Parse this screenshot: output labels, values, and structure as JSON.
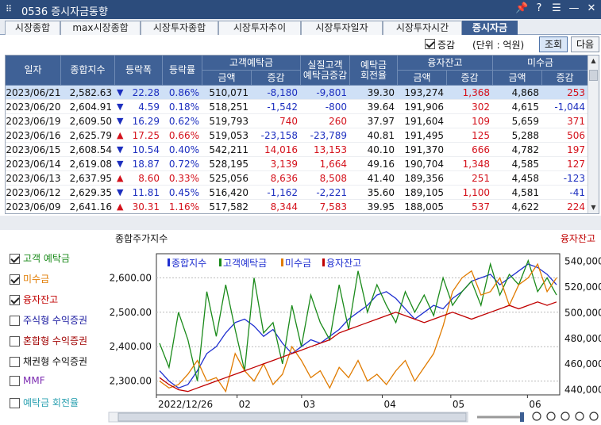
{
  "window": {
    "title": "0536 증시자금동향",
    "buttons": [
      "📌",
      "?",
      "☰",
      "—",
      "✕"
    ]
  },
  "tabs": [
    {
      "label": "시장종합",
      "active": false
    },
    {
      "label": "max시장종합",
      "active": false
    },
    {
      "label": "시장투자종합",
      "active": false
    },
    {
      "label": "시장투자추이",
      "active": false
    },
    {
      "label": "시장투자일자",
      "active": false
    },
    {
      "label": "시장투자시간",
      "active": false
    },
    {
      "label": "증시자금",
      "active": true
    }
  ],
  "controls": {
    "change_label": "증감",
    "change_checked": true,
    "unit_label": "(단위 : 억원)",
    "query_button": "조회",
    "next_button": "다음"
  },
  "grid": {
    "headers": {
      "date": "일자",
      "index": "종합지수",
      "change": "등락폭",
      "rate": "등락률",
      "deposit": "고객예탁금",
      "real_deposit": "실질고객\n예탁금증감",
      "turnover": "예탁금\n회전율",
      "credit": "융자잔고",
      "unpaid": "미수금",
      "amount": "금액",
      "delta": "증감"
    },
    "rows": [
      {
        "date": "2023/06/21",
        "index": "2,582.63",
        "dir": "down",
        "change": "22.28",
        "rate": "0.86%",
        "dep_amt": "510,071",
        "dep_chg": "-8,180",
        "real": "-9,801",
        "turn": "39.30",
        "cr_amt": "193,274",
        "cr_chg": "1,368",
        "un_amt": "4,868",
        "un_chg": "253"
      },
      {
        "date": "2023/06/20",
        "index": "2,604.91",
        "dir": "down",
        "change": "4.59",
        "rate": "0.18%",
        "dep_amt": "518,251",
        "dep_chg": "-1,542",
        "real": "-800",
        "turn": "39.64",
        "cr_amt": "191,906",
        "cr_chg": "302",
        "un_amt": "4,615",
        "un_chg": "-1,044"
      },
      {
        "date": "2023/06/19",
        "index": "2,609.50",
        "dir": "down",
        "change": "16.29",
        "rate": "0.62%",
        "dep_amt": "519,793",
        "dep_chg": "740",
        "real": "260",
        "turn": "37.97",
        "cr_amt": "191,604",
        "cr_chg": "109",
        "un_amt": "5,659",
        "un_chg": "371"
      },
      {
        "date": "2023/06/16",
        "index": "2,625.79",
        "dir": "up",
        "change": "17.25",
        "rate": "0.66%",
        "dep_amt": "519,053",
        "dep_chg": "-23,158",
        "real": "-23,789",
        "turn": "40.81",
        "cr_amt": "191,495",
        "cr_chg": "125",
        "un_amt": "5,288",
        "un_chg": "506"
      },
      {
        "date": "2023/06/15",
        "index": "2,608.54",
        "dir": "down",
        "change": "10.54",
        "rate": "0.40%",
        "dep_amt": "542,211",
        "dep_chg": "14,016",
        "real": "13,153",
        "turn": "40.10",
        "cr_amt": "191,370",
        "cr_chg": "666",
        "un_amt": "4,782",
        "un_chg": "197"
      },
      {
        "date": "2023/06/14",
        "index": "2,619.08",
        "dir": "down",
        "change": "18.87",
        "rate": "0.72%",
        "dep_amt": "528,195",
        "dep_chg": "3,139",
        "real": "1,664",
        "turn": "49.16",
        "cr_amt": "190,704",
        "cr_chg": "1,348",
        "un_amt": "4,585",
        "un_chg": "127"
      },
      {
        "date": "2023/06/13",
        "index": "2,637.95",
        "dir": "up",
        "change": "8.60",
        "rate": "0.33%",
        "dep_amt": "525,056",
        "dep_chg": "8,636",
        "real": "8,508",
        "turn": "41.40",
        "cr_amt": "189,356",
        "cr_chg": "251",
        "un_amt": "4,458",
        "un_chg": "-123"
      },
      {
        "date": "2023/06/12",
        "index": "2,629.35",
        "dir": "down",
        "change": "11.81",
        "rate": "0.45%",
        "dep_amt": "516,420",
        "dep_chg": "-1,162",
        "real": "-2,221",
        "turn": "35.60",
        "cr_amt": "189,105",
        "cr_chg": "1,100",
        "un_amt": "4,581",
        "un_chg": "-41"
      },
      {
        "date": "2023/06/09",
        "index": "2,641.16",
        "dir": "up",
        "change": "30.31",
        "rate": "1.16%",
        "dep_amt": "517,582",
        "dep_chg": "8,344",
        "real": "7,583",
        "turn": "39.95",
        "cr_amt": "188,005",
        "cr_chg": "537",
        "un_amt": "4,622",
        "un_chg": "224"
      }
    ]
  },
  "left_panel": [
    {
      "label": "고객 예탁금",
      "checked": true,
      "color": "#1a8a1a"
    },
    {
      "label": "미수금",
      "checked": true,
      "color": "#e07b00"
    },
    {
      "label": "융자잔고",
      "checked": true,
      "color": "#c00000"
    },
    {
      "label": "주식형 수익증권",
      "checked": false,
      "color": "#1a1aa0"
    },
    {
      "label": "혼합형 수익증권",
      "checked": false,
      "color": "#a00000"
    },
    {
      "label": "채권형 수익증권",
      "checked": false,
      "color": "#111111"
    },
    {
      "label": "MMF",
      "checked": false,
      "color": "#7b2ab0"
    },
    {
      "label": "예탁금 회전율",
      "checked": false,
      "color": "#2aa0b0"
    }
  ],
  "chart_data": {
    "type": "line",
    "title_left": "종합주가지수",
    "title_right": "융자잔고",
    "legend": [
      {
        "name": "종합지수",
        "color": "#1f2fd0"
      },
      {
        "name": "고객예탁금",
        "color": "#1a8a1a"
      },
      {
        "name": "미수금",
        "color": "#e07b00"
      },
      {
        "name": "융자잔고",
        "color": "#c00000"
      }
    ],
    "left_axis": {
      "ticks": [
        "2,300.00",
        "2,400.00",
        "2,500.00",
        "2,600.00"
      ],
      "values": [
        2300,
        2400,
        2500,
        2600
      ],
      "range": [
        2260,
        2670
      ]
    },
    "right_axis": {
      "ticks": [
        "440,000",
        "460,000",
        "480,000",
        "500,000",
        "520,000",
        "540,000"
      ],
      "values": [
        440000,
        460000,
        480000,
        500000,
        520000,
        540000
      ],
      "range": [
        436000,
        546000
      ]
    },
    "x_labels": [
      "2022/12/26",
      "02",
      "03",
      "04",
      "05",
      "06"
    ],
    "x_label_pos": [
      0.0,
      0.2,
      0.36,
      0.56,
      0.73,
      0.92
    ],
    "series": [
      {
        "name": "종합지수",
        "color": "#1f2fd0",
        "values": [
          2330,
          2300,
          2280,
          2290,
          2330,
          2380,
          2400,
          2440,
          2470,
          2480,
          2460,
          2430,
          2450,
          2410,
          2380,
          2400,
          2420,
          2410,
          2430,
          2450,
          2480,
          2500,
          2520,
          2550,
          2560,
          2540,
          2510,
          2480,
          2500,
          2520,
          2510,
          2540,
          2560,
          2590,
          2600,
          2610,
          2580,
          2600,
          2620,
          2640,
          2630,
          2610,
          2580
        ]
      },
      {
        "name": "고객예탁금",
        "color": "#1a8a1a",
        "values": [
          2410,
          2340,
          2500,
          2420,
          2300,
          2560,
          2430,
          2580,
          2450,
          2330,
          2600,
          2440,
          2470,
          2350,
          2520,
          2400,
          2550,
          2470,
          2420,
          2580,
          2450,
          2620,
          2500,
          2580,
          2520,
          2470,
          2560,
          2500,
          2550,
          2490,
          2600,
          2520,
          2560,
          2590,
          2520,
          2640,
          2550,
          2610,
          2580,
          2650,
          2560,
          2600,
          2550
        ]
      },
      {
        "name": "미수금",
        "color": "#e07b00",
        "values": [
          2300,
          2280,
          2290,
          2320,
          2360,
          2300,
          2310,
          2270,
          2380,
          2330,
          2300,
          2350,
          2290,
          2320,
          2400,
          2360,
          2310,
          2330,
          2280,
          2340,
          2310,
          2360,
          2300,
          2320,
          2290,
          2330,
          2360,
          2300,
          2340,
          2380,
          2460,
          2560,
          2600,
          2620,
          2550,
          2560,
          2600,
          2520,
          2580,
          2600,
          2640,
          2560,
          2600
        ]
      },
      {
        "name": "융자잔고",
        "color": "#c00000",
        "values": [
          2310,
          2290,
          2275,
          2270,
          2280,
          2290,
          2300,
          2310,
          2320,
          2330,
          2340,
          2350,
          2360,
          2370,
          2380,
          2390,
          2400,
          2410,
          2420,
          2440,
          2450,
          2460,
          2470,
          2480,
          2490,
          2500,
          2490,
          2480,
          2470,
          2480,
          2490,
          2500,
          2490,
          2480,
          2490,
          2500,
          2510,
          2520,
          2510,
          2520,
          2530,
          2520,
          2530
        ]
      }
    ]
  }
}
